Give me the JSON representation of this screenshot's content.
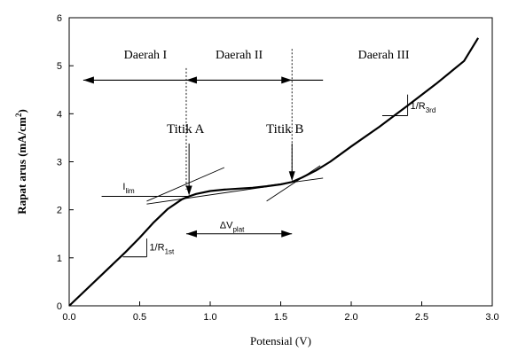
{
  "chart_data": {
    "type": "line",
    "xlabel": "Potensial (V)",
    "ylabel": "Rapat arus (mA/cm",
    "ylabel_sup": "2",
    "ylabel_end": ")",
    "xlim": [
      0,
      3.0
    ],
    "ylim": [
      0,
      6
    ],
    "x_ticks": [
      "0.0",
      "0.5",
      "1.0",
      "1.5",
      "2.0",
      "2.5",
      "3.0"
    ],
    "y_ticks": [
      "0",
      "1",
      "2",
      "3",
      "4",
      "5",
      "6"
    ],
    "grid": false,
    "series": [
      {
        "x": [
          0.0,
          0.2,
          0.4,
          0.5,
          0.6,
          0.7,
          0.8,
          0.85,
          0.9,
          1.0,
          1.1,
          1.2,
          1.3,
          1.4,
          1.5,
          1.58,
          1.65,
          1.75,
          1.85,
          2.0,
          2.2,
          2.4,
          2.6,
          2.8,
          2.9
        ],
        "y": [
          0.0,
          0.56,
          1.12,
          1.42,
          1.74,
          2.02,
          2.22,
          2.28,
          2.33,
          2.39,
          2.42,
          2.44,
          2.46,
          2.49,
          2.53,
          2.58,
          2.67,
          2.82,
          3.0,
          3.32,
          3.73,
          4.17,
          4.62,
          5.1,
          5.58
        ]
      }
    ],
    "regions": [
      "Daerah I",
      "Daerah II",
      "Daerah III"
    ],
    "region_bounds": [
      0.83,
      1.58
    ],
    "points": [
      {
        "label": "Titik A",
        "x": 0.85,
        "y": 2.28
      },
      {
        "label": "Titik B",
        "x": 1.58,
        "y": 2.58
      }
    ],
    "annotations": {
      "ilim": {
        "text": "I",
        "sub": "lim",
        "y": 2.28
      },
      "dvplat": {
        "text": "ΔV",
        "sub": "plat",
        "y": 1.5
      },
      "r1st": {
        "text": "1/R",
        "sub": "1st",
        "x": 0.55,
        "y": 1.4
      },
      "r3rd": {
        "text": "1/R",
        "sub": "3rd",
        "x": 2.4,
        "y": 4.4
      }
    }
  }
}
